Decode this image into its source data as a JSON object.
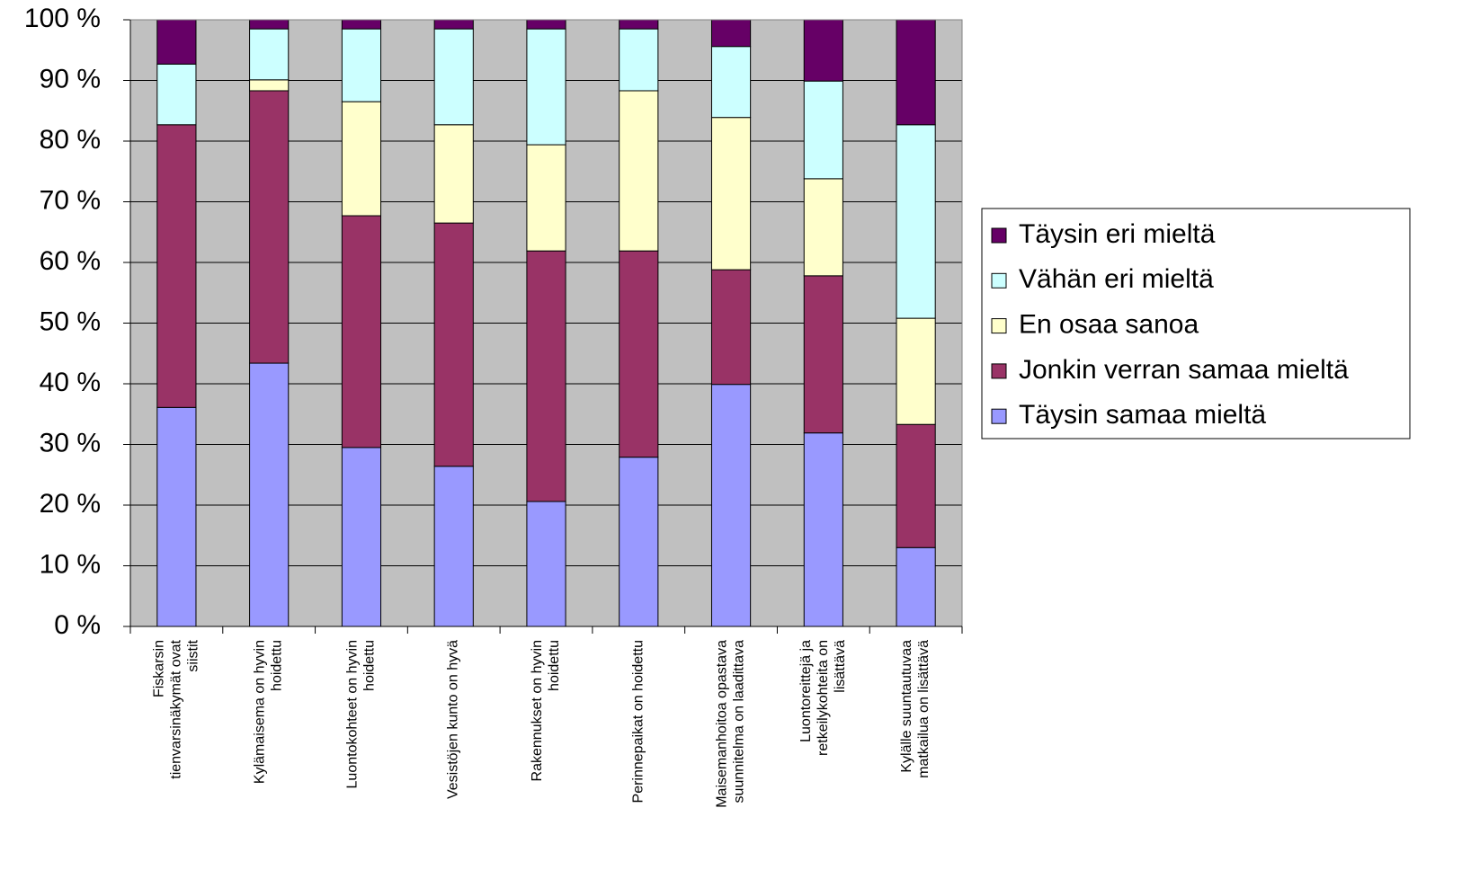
{
  "chart_data": {
    "type": "stacked_bar",
    "categories": [
      "Fiskarsin tienvarsinäkymät ovat siistit",
      "Kylämaisema on hyvin hoidettu",
      "Luontokohteet on hyvin hoidettu",
      "Vesistöjen kunto on hyvä",
      "Rakennukset on hyvin hoidettu",
      "Perinnepaikat on hoidettu",
      "Maisemanhoitoa opastava suunnitelma on laadittava",
      "Luontoreittejä ja retkeilykohteita on lisättävä",
      "Kylälle suuntautuvaa matkailua on lisättävä"
    ],
    "series": [
      {
        "name": "Täysin samaa mieltä",
        "color": "#9999ff",
        "values": [
          36.1,
          43.4,
          29.5,
          26.4,
          20.6,
          27.9,
          39.9,
          31.9,
          13.0
        ]
      },
      {
        "name": "Jonkin verran samaa mieltä",
        "color": "#993366",
        "values": [
          46.6,
          44.9,
          38.2,
          40.1,
          41.3,
          34.0,
          18.9,
          25.9,
          20.3
        ]
      },
      {
        "name": "En osaa sanoa",
        "color": "#ffffcc",
        "values": [
          0,
          1.8,
          18.8,
          16.2,
          17.5,
          26.4,
          25.1,
          16.0,
          17.5
        ]
      },
      {
        "name": "Vähän eri mieltä",
        "color": "#ccffff",
        "values": [
          10.0,
          8.4,
          12.0,
          15.8,
          19.1,
          10.2,
          11.7,
          16.1,
          31.9
        ]
      },
      {
        "name": "Täysin eri mieltä",
        "color": "#660066",
        "values": [
          7.3,
          1.5,
          1.5,
          1.5,
          1.5,
          1.5,
          4.4,
          10.1,
          17.3
        ]
      }
    ],
    "ylim": [
      0,
      100
    ],
    "yticks": [
      {
        "value": 0,
        "label": "0 %"
      },
      {
        "value": 10,
        "label": "10 %"
      },
      {
        "value": 20,
        "label": "20 %"
      },
      {
        "value": 30,
        "label": "30 %"
      },
      {
        "value": 40,
        "label": "40 %"
      },
      {
        "value": 50,
        "label": "50 %"
      },
      {
        "value": 60,
        "label": "60 %"
      },
      {
        "value": 70,
        "label": "70 %"
      },
      {
        "value": 80,
        "label": "80 %"
      },
      {
        "value": 90,
        "label": "90 %"
      },
      {
        "value": 100,
        "label": "100 %"
      }
    ],
    "grid": true,
    "legend": "right"
  }
}
